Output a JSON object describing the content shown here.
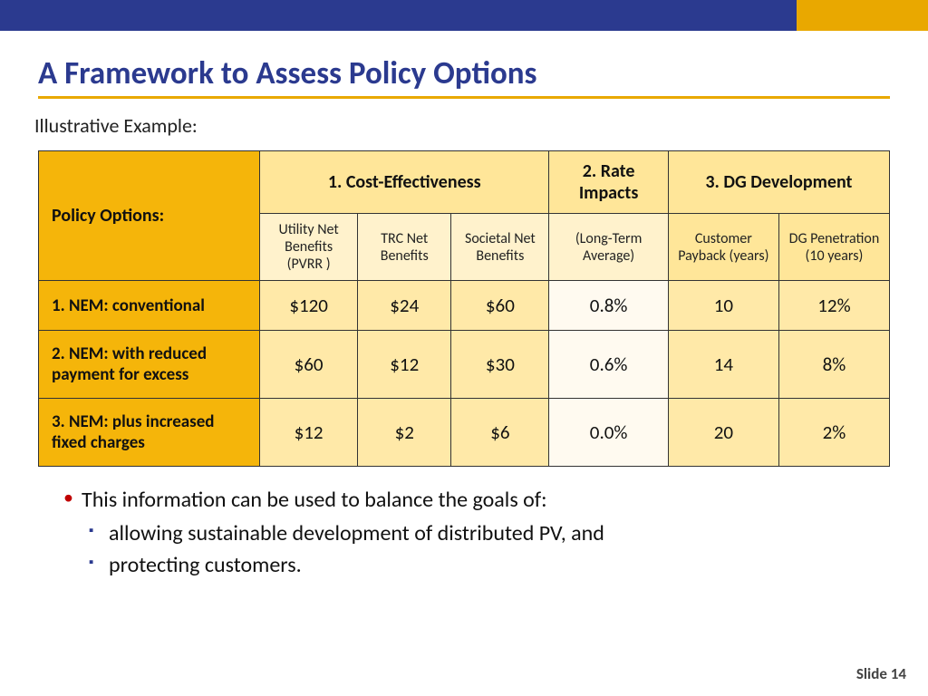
{
  "colors": {
    "navy": "#2b3a8f",
    "gold": "#e9a800",
    "header_gold": "#f5b50a",
    "header_light": "#ffe699",
    "sub_light": "#fff2cc",
    "cell_gold": "#ffe9a8",
    "cell_pale": "#fffaf0",
    "bullet_red": "#c00000",
    "bullet_navy": "#2b3a8f"
  },
  "title": "A Framework to Assess Policy Options",
  "subtitle": "Illustrative Example:",
  "table": {
    "corner_label": "Policy Options:",
    "groups": [
      {
        "label": "1. Cost-Effectiveness",
        "span": 3
      },
      {
        "label": "2. Rate Impacts",
        "span": 1
      },
      {
        "label": "3. DG Development",
        "span": 2
      }
    ],
    "subheaders": [
      "Utility Net Benefits (PVRR )",
      "TRC Net Benefits",
      "Societal Net Benefits",
      "(Long-Term Average)",
      "Customer Payback (years)",
      "DG Penetration (10 years)"
    ],
    "sub_bg": [
      "light",
      "light",
      "light",
      "light",
      "gold",
      "gold"
    ],
    "col_widths_pct": [
      26,
      11.5,
      11,
      11.5,
      14,
      13,
      13
    ],
    "rows": [
      {
        "label": "1. NEM: conventional",
        "cells": [
          "$120",
          "$24",
          "$60",
          "0.8%",
          "10",
          "12%"
        ]
      },
      {
        "label": "2. NEM: with reduced payment for excess",
        "cells": [
          "$60",
          "$12",
          "$30",
          "0.6%",
          "14",
          "8%"
        ]
      },
      {
        "label": "3. NEM: plus increased fixed charges",
        "cells": [
          "$12",
          "$2",
          "$6",
          "0.0%",
          "20",
          "2%"
        ]
      }
    ],
    "pale_col_index": 3
  },
  "bullets": {
    "b1": "This information can be used to balance the goals of:",
    "b2a": "allowing sustainable development of distributed PV, and",
    "b2b": "protecting customers."
  },
  "slide_number": "Slide 14"
}
